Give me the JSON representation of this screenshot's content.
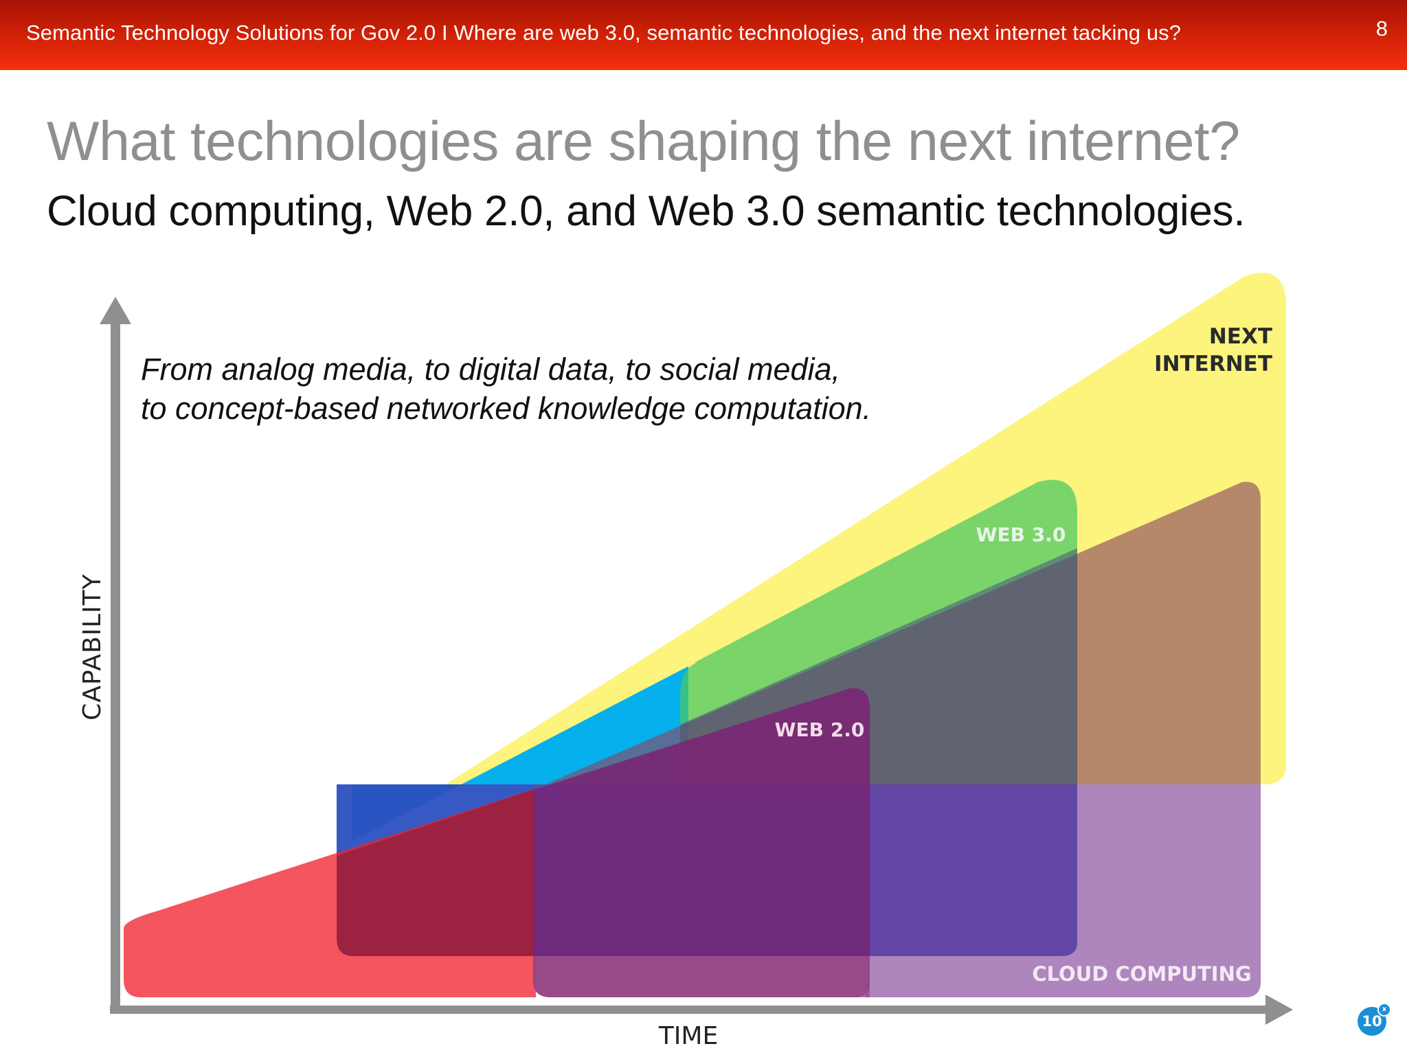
{
  "header": {
    "title": "Semantic Technology Solutions for Gov 2.0 I Where are web 3.0, semantic technologies, and the next internet tacking us?",
    "slide_number": "8"
  },
  "main": {
    "title": "What technologies are shaping the next internet?",
    "subtitle": "Cloud computing, Web 2.0, and Web 3.0 semantic technologies."
  },
  "diagram": {
    "caption_line1": "From analog media, to digital data, to social media,",
    "caption_line2": "to concept-based networked knowledge computation.",
    "y_axis_label": "CAPABILITY",
    "x_axis_label": "TIME",
    "regions": {
      "next_internet_line1": "NEXT",
      "next_internet_line2": "INTERNET",
      "web3": "WEB 3.0",
      "web2": "WEB 2.0",
      "cloud": "CLOUD COMPUTING"
    },
    "colors": {
      "next_internet": "#fbf266",
      "web3_above": "#00aeef",
      "web3": "#4ac763",
      "web2": "#7a2474",
      "cloud": "#f0202c",
      "cloud_right": "#7d3a94",
      "axis": "#8f8f8f"
    }
  },
  "badge": {
    "count": "10",
    "mark": "x"
  }
}
